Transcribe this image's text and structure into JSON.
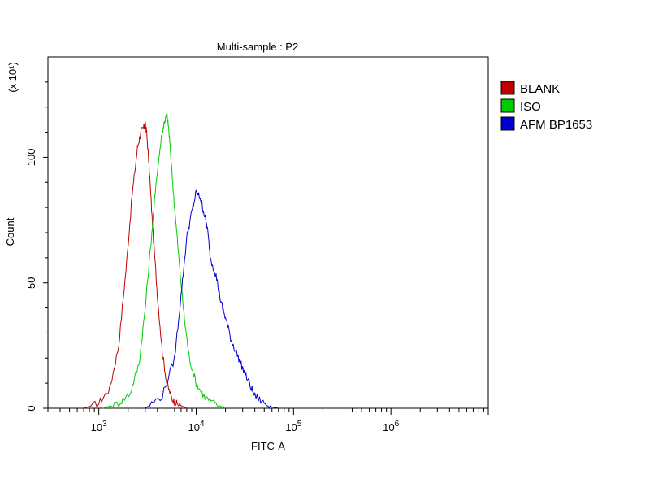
{
  "chart_data": {
    "type": "line",
    "title": "Multi-sample : P2",
    "xlabel": "FITC-A",
    "ylabel": "Count",
    "y_multiplier": "(x 10¹)",
    "x_scale": "log",
    "xlim": [
      300,
      10000000
    ],
    "ylim": [
      0,
      140
    ],
    "x_ticks": [
      {
        "value": 1000,
        "base": "10",
        "exp": "3"
      },
      {
        "value": 10000,
        "base": "10",
        "exp": "4"
      },
      {
        "value": 100000,
        "base": "10",
        "exp": "5"
      },
      {
        "value": 1000000,
        "base": "10",
        "exp": "6"
      }
    ],
    "y_ticks": [
      {
        "value": 0,
        "label": "0"
      },
      {
        "value": 50,
        "label": "50"
      },
      {
        "value": 100,
        "label": "100"
      }
    ],
    "grid": false,
    "legend_position": "right-top",
    "series": [
      {
        "name": "BLANK",
        "color": "#c00000",
        "x": [
          700,
          1000,
          1300,
          1600,
          1900,
          2200,
          2500,
          2700,
          2900,
          3000,
          3100,
          3300,
          3600,
          4000,
          4500,
          5000,
          5600,
          6200,
          7000,
          8000
        ],
        "y": [
          0,
          2,
          8,
          25,
          55,
          85,
          104,
          110,
          112,
          113,
          110,
          95,
          70,
          45,
          22,
          10,
          4,
          2,
          1,
          0
        ]
      },
      {
        "name": "ISO",
        "color": "#00cc00",
        "x": [
          1100,
          1600,
          2100,
          2600,
          3000,
          3500,
          4000,
          4400,
          4700,
          5000,
          5200,
          5500,
          6000,
          6800,
          7600,
          8500,
          10000,
          12000,
          15000,
          20000
        ],
        "y": [
          0,
          2,
          6,
          18,
          40,
          70,
          95,
          108,
          114,
          117,
          112,
          100,
          80,
          55,
          35,
          20,
          10,
          5,
          2,
          0
        ]
      },
      {
        "name": "AFM BP1653",
        "color": "#0000cc",
        "x": [
          3000,
          4500,
          6000,
          7000,
          8000,
          9000,
          10000,
          11000,
          12000,
          13000,
          14000,
          16000,
          18000,
          20000,
          23000,
          26000,
          30000,
          35000,
          40000,
          50000,
          60000,
          70000
        ],
        "y": [
          0,
          5,
          20,
          45,
          68,
          78,
          86,
          84,
          78,
          72,
          60,
          53,
          42,
          36,
          27,
          22,
          16,
          10,
          5,
          2,
          0.5,
          0
        ]
      }
    ]
  }
}
